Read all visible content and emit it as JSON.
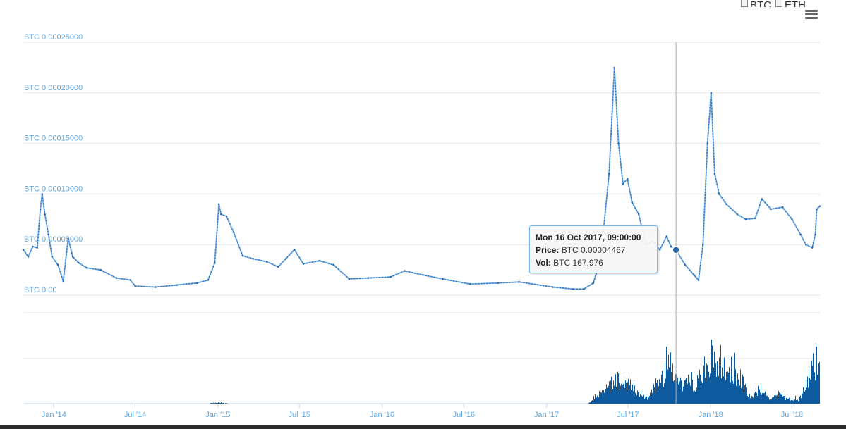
{
  "controls": {
    "toggles": [
      {
        "label": "BTC",
        "checked": false
      },
      {
        "label": "ETH",
        "checked": false
      }
    ],
    "menu_icon": "hamburger-menu-icon"
  },
  "tooltip": {
    "date": "Mon 16 Oct 2017, 09:00:00",
    "price_label": "Price:",
    "price_value": "BTC 0.00004467",
    "vol_label": "Vol:",
    "vol_value": "BTC 167,976"
  },
  "colors": {
    "line": "#2b6cb0",
    "line_light": "#7cb5ec",
    "axis_label": "#5fa8e0",
    "grid": "#e6e6e6",
    "volume": "#0e5a9e"
  },
  "chart_data": [
    {
      "type": "line",
      "y_tick_labels": [
        "BTC 0.00025000",
        "BTC 0.00020000",
        "BTC 0.00015000",
        "BTC 0.00010000",
        "BTC 0.00005000",
        "BTC 0.00"
      ],
      "ylim": [
        0,
        0.00025
      ],
      "xlim": [
        "2013-10-25",
        "2018-09-01"
      ],
      "x_tick_labels": [
        "Jan '14",
        "Jul '14",
        "Jan '15",
        "Jul '15",
        "Jan '16",
        "Jul '16",
        "Jan '17",
        "Jul '17",
        "Jan '18",
        "Jul '18"
      ],
      "x_tick_dates": [
        "2014-01-01",
        "2014-07-01",
        "2015-01-01",
        "2015-07-01",
        "2016-01-01",
        "2016-07-01",
        "2017-01-01",
        "2017-07-01",
        "2018-01-01",
        "2018-07-01"
      ],
      "grid": true,
      "series": [
        {
          "points": [
            [
              "2013-10-25",
              4.5e-05
            ],
            [
              "2013-11-05",
              3.8e-05
            ],
            [
              "2013-11-15",
              4.8e-05
            ],
            [
              "2013-11-25",
              4.7e-05
            ],
            [
              "2013-12-02",
              8.5e-05
            ],
            [
              "2013-12-06",
              0.0001
            ],
            [
              "2013-12-12",
              8e-05
            ],
            [
              "2013-12-20",
              6e-05
            ],
            [
              "2013-12-28",
              3.8e-05
            ],
            [
              "2014-01-10",
              3e-05
            ],
            [
              "2014-01-22",
              1.4e-05
            ],
            [
              "2014-02-02",
              5.6e-05
            ],
            [
              "2014-02-12",
              3.8e-05
            ],
            [
              "2014-02-25",
              3.2e-05
            ],
            [
              "2014-03-15",
              2.7e-05
            ],
            [
              "2014-04-15",
              2.5e-05
            ],
            [
              "2014-05-20",
              1.7e-05
            ],
            [
              "2014-06-20",
              1.5e-05
            ],
            [
              "2014-07-01",
              9e-06
            ],
            [
              "2014-08-15",
              8e-06
            ],
            [
              "2014-10-01",
              1e-05
            ],
            [
              "2014-11-15",
              1.2e-05
            ],
            [
              "2014-12-10",
              1.5e-05
            ],
            [
              "2014-12-25",
              3.2e-05
            ],
            [
              "2015-01-03",
              9e-05
            ],
            [
              "2015-01-08",
              8e-05
            ],
            [
              "2015-01-20",
              7.8e-05
            ],
            [
              "2015-02-05",
              6.2e-05
            ],
            [
              "2015-02-25",
              3.9e-05
            ],
            [
              "2015-03-20",
              3.6e-05
            ],
            [
              "2015-04-20",
              3.3e-05
            ],
            [
              "2015-05-15",
              2.8e-05
            ],
            [
              "2015-06-01",
              3.6e-05
            ],
            [
              "2015-06-20",
              4.5e-05
            ],
            [
              "2015-07-10",
              3.1e-05
            ],
            [
              "2015-08-15",
              3.4e-05
            ],
            [
              "2015-09-15",
              3e-05
            ],
            [
              "2015-10-20",
              1.6e-05
            ],
            [
              "2015-12-01",
              1.7e-05
            ],
            [
              "2016-01-20",
              1.8e-05
            ],
            [
              "2016-02-20",
              2.4e-05
            ],
            [
              "2016-04-01",
              2e-05
            ],
            [
              "2016-05-15",
              1.6e-05
            ],
            [
              "2016-07-15",
              1.1e-05
            ],
            [
              "2016-09-15",
              1.2e-05
            ],
            [
              "2016-11-01",
              1.3e-05
            ],
            [
              "2017-01-15",
              8e-06
            ],
            [
              "2017-03-01",
              6e-06
            ],
            [
              "2017-03-25",
              6e-06
            ],
            [
              "2017-04-15",
              1.2e-05
            ],
            [
              "2017-05-01",
              3.5e-05
            ],
            [
              "2017-05-20",
              0.00012
            ],
            [
              "2017-06-01",
              0.000225
            ],
            [
              "2017-06-10",
              0.00015
            ],
            [
              "2017-06-20",
              0.00011
            ],
            [
              "2017-06-30",
              0.000115
            ],
            [
              "2017-07-10",
              9.2e-05
            ],
            [
              "2017-07-25",
              8e-05
            ],
            [
              "2017-08-10",
              5e-05
            ],
            [
              "2017-08-25",
              5.3e-05
            ],
            [
              "2017-09-10",
              4.5e-05
            ],
            [
              "2017-09-25",
              5.8e-05
            ],
            [
              "2017-10-05",
              4.8e-05
            ],
            [
              "2017-10-16",
              4.467e-05
            ],
            [
              "2017-11-05",
              3e-05
            ],
            [
              "2017-11-25",
              2e-05
            ],
            [
              "2017-12-05",
              1.5e-05
            ],
            [
              "2017-12-15",
              5e-05
            ],
            [
              "2017-12-25",
              0.00015
            ],
            [
              "2018-01-02",
              0.0002
            ],
            [
              "2018-01-10",
              0.00012
            ],
            [
              "2018-01-20",
              0.0001
            ],
            [
              "2018-02-05",
              9e-05
            ],
            [
              "2018-03-01",
              8e-05
            ],
            [
              "2018-03-20",
              7.5e-05
            ],
            [
              "2018-04-10",
              7.6e-05
            ],
            [
              "2018-04-25",
              9.5e-05
            ],
            [
              "2018-05-15",
              8.5e-05
            ],
            [
              "2018-06-10",
              8.7e-05
            ],
            [
              "2018-07-01",
              7.5e-05
            ],
            [
              "2018-07-20",
              6e-05
            ],
            [
              "2018-08-01",
              5e-05
            ],
            [
              "2018-08-15",
              4.7e-05
            ],
            [
              "2018-08-22",
              6e-05
            ],
            [
              "2018-08-25",
              8.5e-05
            ],
            [
              "2018-09-01",
              8.8e-05
            ]
          ]
        }
      ],
      "highlight": {
        "x": "2017-10-16",
        "y": 4.467e-05
      }
    },
    {
      "type": "bar",
      "xlim": [
        "2013-10-25",
        "2018-09-01"
      ],
      "volume_peaks": [
        [
          "2015-01-01",
          0.02
        ],
        [
          "2017-05-01",
          0.2
        ],
        [
          "2017-06-05",
          0.45
        ],
        [
          "2017-07-05",
          0.35
        ],
        [
          "2017-09-01",
          0.3
        ],
        [
          "2017-10-01",
          0.75
        ],
        [
          "2017-11-15",
          0.4
        ],
        [
          "2017-12-20",
          0.55
        ],
        [
          "2018-01-05",
          0.8
        ],
        [
          "2018-01-20",
          0.7
        ],
        [
          "2018-02-20",
          0.6
        ],
        [
          "2018-04-20",
          0.25
        ],
        [
          "2018-06-01",
          0.15
        ],
        [
          "2018-08-28",
          0.85
        ]
      ]
    }
  ]
}
